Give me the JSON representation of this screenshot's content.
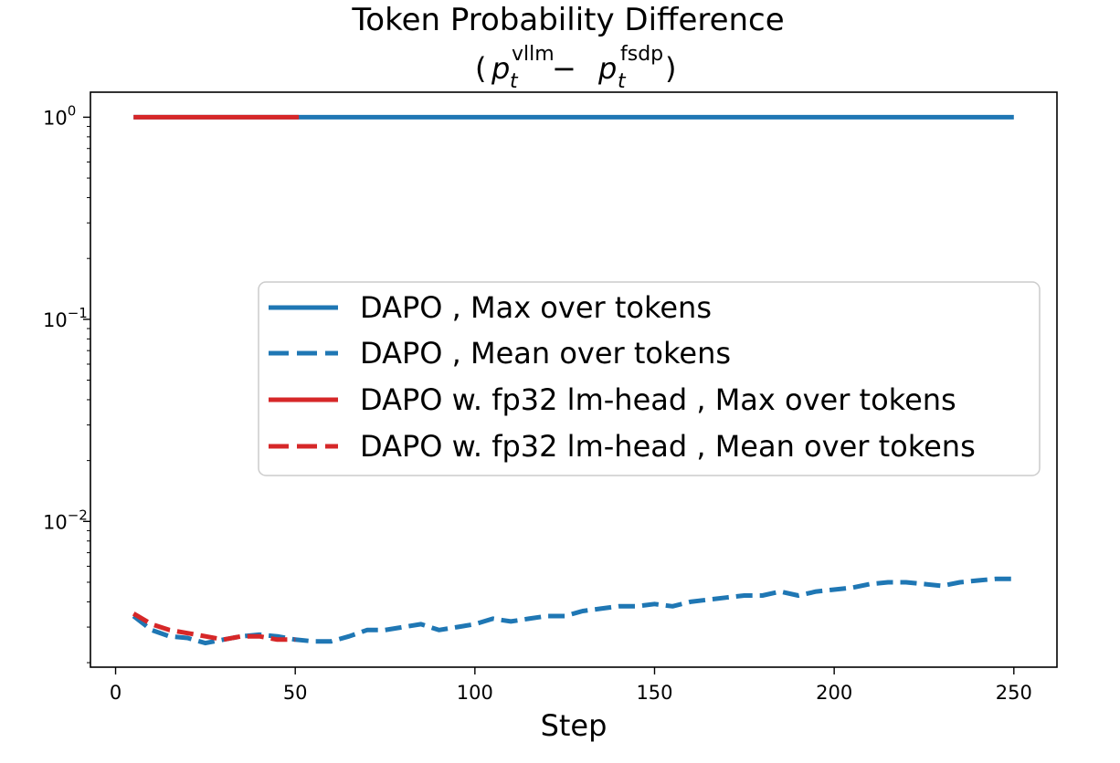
{
  "chart_data": {
    "type": "line",
    "title": "Token Probability Difference",
    "subtitle_parts": {
      "open": "(",
      "p": "p",
      "sub": "t",
      "sup1": "vllm",
      "minus": " − ",
      "sup2": "fsdp",
      "close": ")"
    },
    "xlabel": "Step",
    "ylabel": "",
    "xlim": [
      -7,
      262
    ],
    "ylim": [
      0.0019,
      1.33
    ],
    "yscale": "log",
    "xticks": [
      0,
      50,
      100,
      150,
      200,
      250
    ],
    "yticks": [
      {
        "value": 1,
        "base": "10",
        "exp": "0"
      },
      {
        "value": 0.1,
        "base": "10",
        "exp": "−1"
      },
      {
        "value": 0.01,
        "base": "10",
        "exp": "−2"
      }
    ],
    "legend_position": "center-right",
    "series": [
      {
        "name": "DAPO , Max over tokens",
        "color": "#1f77b4",
        "style": "solid",
        "x": [
          5,
          250
        ],
        "y": [
          1.0,
          1.0
        ]
      },
      {
        "name": "DAPO , Mean over tokens",
        "color": "#1f77b4",
        "style": "dashed",
        "x": [
          5,
          10,
          15,
          20,
          25,
          30,
          35,
          40,
          45,
          50,
          55,
          60,
          65,
          70,
          75,
          80,
          85,
          90,
          95,
          100,
          105,
          110,
          115,
          120,
          125,
          130,
          135,
          140,
          145,
          150,
          155,
          160,
          165,
          170,
          175,
          180,
          185,
          190,
          195,
          200,
          205,
          210,
          215,
          220,
          225,
          230,
          235,
          240,
          245,
          250
        ],
        "y": [
          0.0034,
          0.0029,
          0.0027,
          0.00265,
          0.0025,
          0.0026,
          0.0027,
          0.00275,
          0.0027,
          0.0026,
          0.00255,
          0.00255,
          0.0027,
          0.0029,
          0.0029,
          0.003,
          0.0031,
          0.0029,
          0.003,
          0.0031,
          0.0033,
          0.0032,
          0.0033,
          0.0034,
          0.0034,
          0.0036,
          0.0037,
          0.0038,
          0.0038,
          0.0039,
          0.0038,
          0.004,
          0.0041,
          0.0042,
          0.0043,
          0.0043,
          0.0045,
          0.0043,
          0.0045,
          0.0046,
          0.0047,
          0.0049,
          0.005,
          0.005,
          0.0049,
          0.0048,
          0.005,
          0.0051,
          0.0052,
          0.0052
        ]
      },
      {
        "name": "DAPO w. fp32 lm-head , Max over tokens",
        "color": "#d62728",
        "style": "solid",
        "x": [
          5,
          51
        ],
        "y": [
          1.0,
          1.0
        ]
      },
      {
        "name": "DAPO w. fp32 lm-head , Mean over tokens",
        "color": "#d62728",
        "style": "dashed",
        "x": [
          5,
          10,
          15,
          20,
          25,
          30,
          35,
          40,
          45,
          50
        ],
        "y": [
          0.0035,
          0.0031,
          0.0029,
          0.0028,
          0.0027,
          0.0026,
          0.0027,
          0.0027,
          0.0026,
          0.0026
        ]
      }
    ]
  }
}
